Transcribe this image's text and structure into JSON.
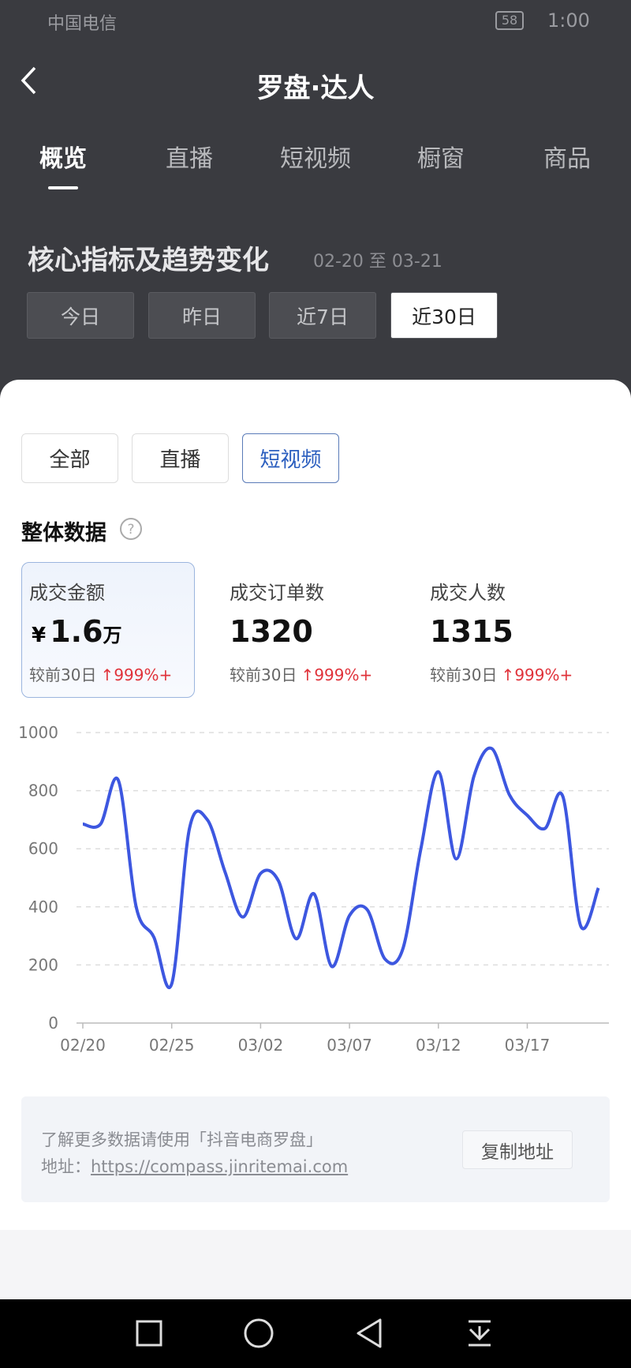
{
  "status_bar": {
    "carrier": "中国电信",
    "battery": "58",
    "time": "1:00"
  },
  "header": {
    "title": "罗盘·达人"
  },
  "tabs": [
    "概览",
    "直播",
    "短视频",
    "橱窗",
    "商品"
  ],
  "section": {
    "title": "核心指标及趋势变化",
    "date_range": "02-20 至 03-21"
  },
  "periods": [
    "今日",
    "昨日",
    "近7日",
    "近30日"
  ],
  "filters": [
    "全部",
    "直播",
    "短视频"
  ],
  "overview_title": "整体数据",
  "metrics": [
    {
      "label": "成交金额",
      "currency": "¥",
      "value": 1.6,
      "unit": "万",
      "compare": "较前30日",
      "change": "999%+"
    },
    {
      "label": "成交订单数",
      "value": 1320,
      "compare": "较前30日",
      "change": "999%+"
    },
    {
      "label": "成交人数",
      "value": 1315,
      "compare": "较前30日",
      "change": "999%+"
    }
  ],
  "chart_data": {
    "type": "line",
    "categories": [
      "02/20",
      null,
      null,
      null,
      null,
      "02/25",
      null,
      null,
      null,
      null,
      "03/02",
      null,
      null,
      null,
      null,
      "03/07",
      null,
      null,
      null,
      null,
      "03/12",
      null,
      null,
      null,
      null,
      "03/17",
      null,
      null,
      null,
      null
    ],
    "values": [
      685,
      685,
      835,
      400,
      295,
      135,
      670,
      700,
      520,
      365,
      515,
      490,
      290,
      445,
      195,
      370,
      390,
      220,
      255,
      595,
      865,
      565,
      850,
      945,
      785,
      715,
      670,
      780,
      335,
      465
    ],
    "color": "#3d57e0",
    "ylim": [
      0,
      1000
    ],
    "yticks": [
      0,
      200,
      400,
      600,
      800,
      1000
    ],
    "grid": true
  },
  "footer": {
    "note": "了解更多数据请使用「抖音电商罗盘」",
    "address_label": "地址：",
    "url": "https://compass.jinritemai.com",
    "copy_button": "复制地址"
  }
}
